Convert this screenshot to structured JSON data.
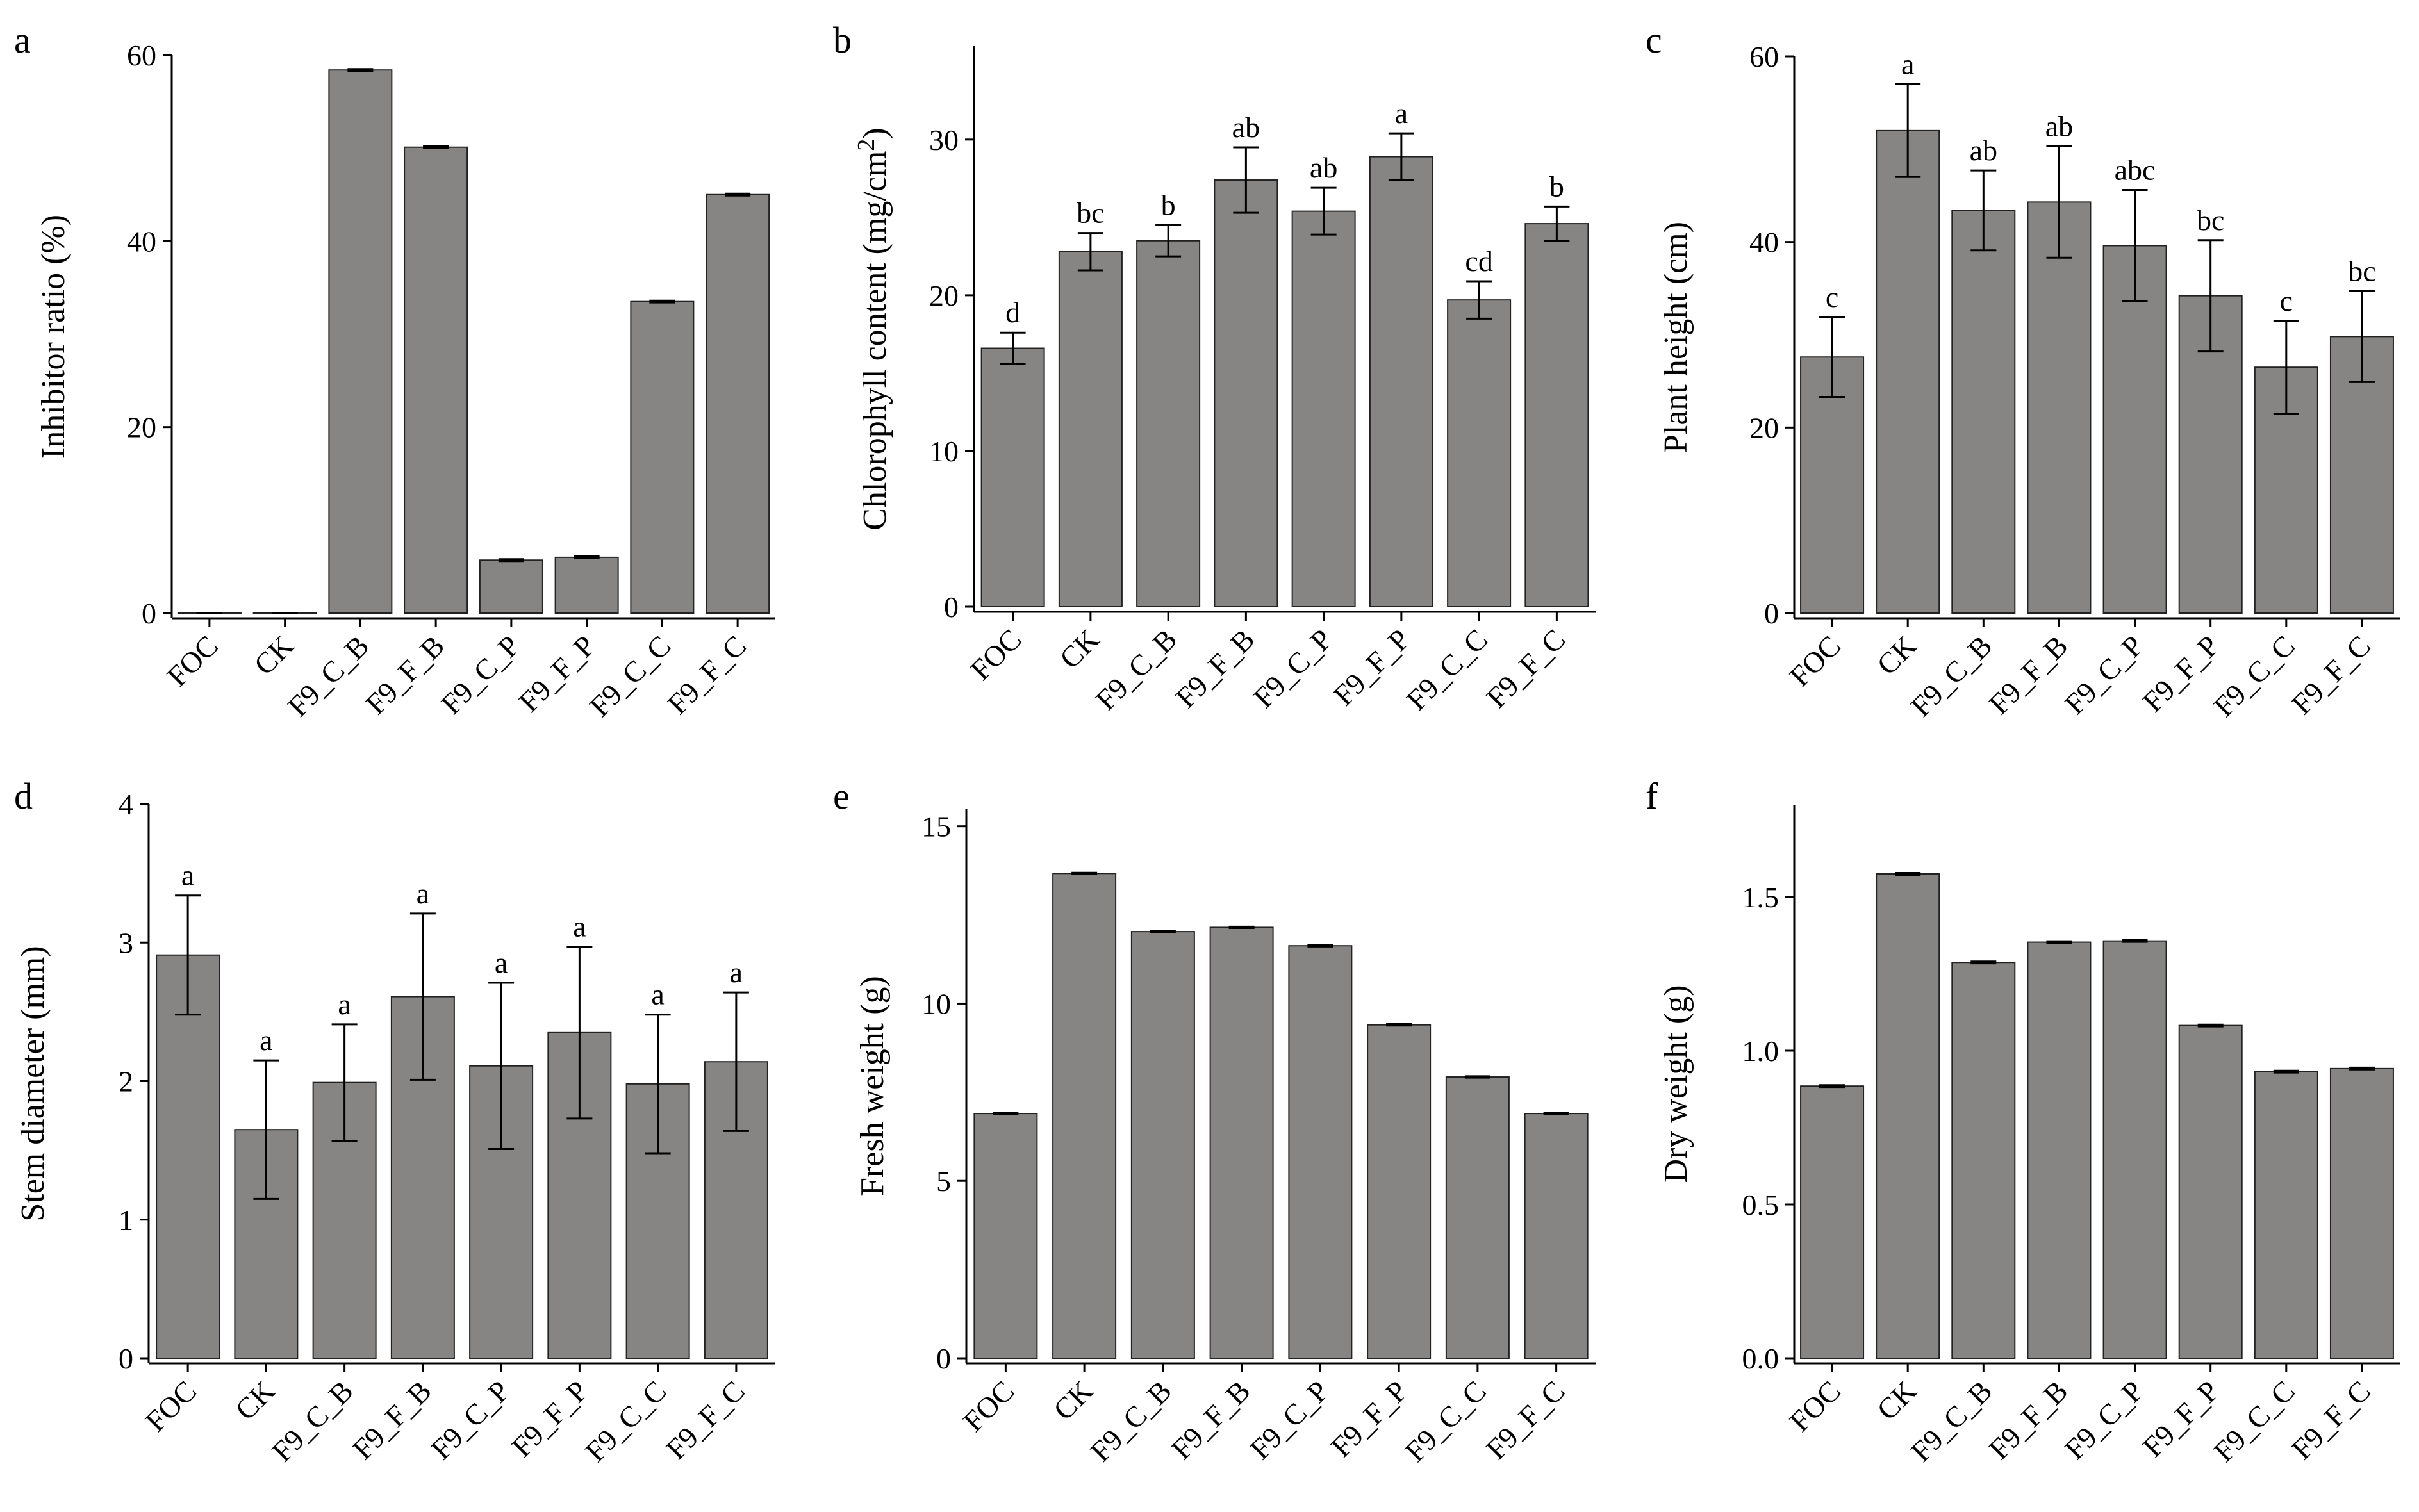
{
  "figure": {
    "bar_color": "#868583",
    "bar_stroke": "#222222"
  },
  "chart_data": [
    {
      "panel": "a",
      "type": "bar",
      "title": "",
      "xlabel": "",
      "ylabel": "Inhibitor ratio (%)",
      "ylim": [
        0,
        60
      ],
      "yticks": [
        0,
        20,
        40,
        60
      ],
      "ytick_labels": [
        "0",
        "20",
        "40",
        "60"
      ],
      "categories": [
        "FOC",
        "CK",
        "F9_C_B",
        "F9_F_B",
        "F9_C_P",
        "F9_F_P",
        "F9_C_C",
        "F9_F_C"
      ],
      "values": [
        0,
        0,
        58.4,
        50.1,
        5.7,
        6.0,
        33.5,
        45.0
      ],
      "errors": [
        0,
        0,
        0.1,
        0.1,
        0.1,
        0.1,
        0.1,
        0.1
      ],
      "significance": []
    },
    {
      "panel": "b",
      "type": "bar",
      "title": "",
      "xlabel": "",
      "ylabel": "Chlorophyll content (mg/cm",
      "ylabel_sup": "2",
      "ylabel_close": ")",
      "ylim": [
        0,
        36
      ],
      "yticks": [
        0,
        10,
        20,
        30
      ],
      "ytick_labels": [
        "0",
        "10",
        "20",
        "30"
      ],
      "categories": [
        "FOC",
        "CK",
        "F9_C_B",
        "F9_F_B",
        "F9_C_P",
        "F9_F_P",
        "F9_C_C",
        "F9_F_C"
      ],
      "values": [
        16.6,
        22.8,
        23.5,
        27.4,
        25.4,
        28.9,
        19.7,
        24.6
      ],
      "errors": [
        1.0,
        1.2,
        1.0,
        2.1,
        1.5,
        1.5,
        1.2,
        1.1
      ],
      "significance": [
        "d",
        "bc",
        "b",
        "ab",
        "ab",
        "a",
        "cd",
        "b"
      ]
    },
    {
      "panel": "c",
      "type": "bar",
      "title": "",
      "xlabel": "",
      "ylabel": "Plant height (cm)",
      "ylim": [
        0,
        60
      ],
      "yticks": [
        0,
        20,
        40,
        60
      ],
      "ytick_labels": [
        "0",
        "20",
        "40",
        "60"
      ],
      "categories": [
        "FOC",
        "CK",
        "F9_C_B",
        "F9_F_B",
        "F9_C_P",
        "F9_F_P",
        "F9_C_C",
        "F9_F_C"
      ],
      "values": [
        27.6,
        52.0,
        43.4,
        44.3,
        39.6,
        34.2,
        26.5,
        29.8
      ],
      "errors": [
        4.3,
        5.0,
        4.3,
        6.0,
        6.0,
        6.0,
        5.0,
        4.9
      ],
      "significance": [
        "c",
        "a",
        "ab",
        "ab",
        "abc",
        "bc",
        "c",
        "bc"
      ]
    },
    {
      "panel": "d",
      "type": "bar",
      "title": "",
      "xlabel": "",
      "ylabel": "Stem diameter (mm)",
      "ylim": [
        0,
        4
      ],
      "yticks": [
        0,
        1,
        2,
        3,
        4
      ],
      "ytick_labels": [
        "0",
        "1",
        "2",
        "3",
        "4"
      ],
      "categories": [
        "FOC",
        "CK",
        "F9_C_B",
        "F9_F_B",
        "F9_C_P",
        "F9_F_P",
        "F9_C_C",
        "F9_F_C"
      ],
      "values": [
        2.91,
        1.65,
        1.99,
        2.61,
        2.11,
        2.35,
        1.98,
        2.14
      ],
      "errors": [
        0.43,
        0.5,
        0.42,
        0.6,
        0.6,
        0.62,
        0.5,
        0.5
      ],
      "significance": [
        "a",
        "a",
        "a",
        "a",
        "a",
        "a",
        "a",
        "a"
      ]
    },
    {
      "panel": "e",
      "type": "bar",
      "title": "",
      "xlabel": "",
      "ylabel": "Fresh weight (g)",
      "ylim": [
        0,
        15.5
      ],
      "yticks": [
        0,
        5,
        10,
        15
      ],
      "ytick_labels": [
        "0",
        "5",
        "10",
        "15"
      ],
      "categories": [
        "FOC",
        "CK",
        "F9_C_B",
        "F9_F_B",
        "F9_C_P",
        "F9_F_P",
        "F9_C_C",
        "F9_F_C"
      ],
      "values": [
        6.9,
        13.67,
        12.03,
        12.15,
        11.63,
        9.4,
        7.93,
        6.9
      ],
      "errors": [
        0.02,
        0.02,
        0.02,
        0.02,
        0.02,
        0.02,
        0.02,
        0.02
      ],
      "significance": []
    },
    {
      "panel": "f",
      "type": "bar",
      "title": "",
      "xlabel": "",
      "ylabel": "Dry weight (g)",
      "ylim": [
        0,
        1.8
      ],
      "yticks": [
        0,
        0.5,
        1.0,
        1.5
      ],
      "ytick_labels": [
        "0.0",
        "0.5",
        "1.0",
        "1.5"
      ],
      "categories": [
        "FOC",
        "CK",
        "F9_C_B",
        "F9_F_B",
        "F9_C_P",
        "F9_F_P",
        "F9_C_C",
        "F9_F_C"
      ],
      "values": [
        0.885,
        1.575,
        1.287,
        1.353,
        1.357,
        1.082,
        0.932,
        0.942
      ],
      "errors": [
        0.003,
        0.003,
        0.003,
        0.003,
        0.003,
        0.003,
        0.003,
        0.003
      ],
      "significance": []
    }
  ]
}
